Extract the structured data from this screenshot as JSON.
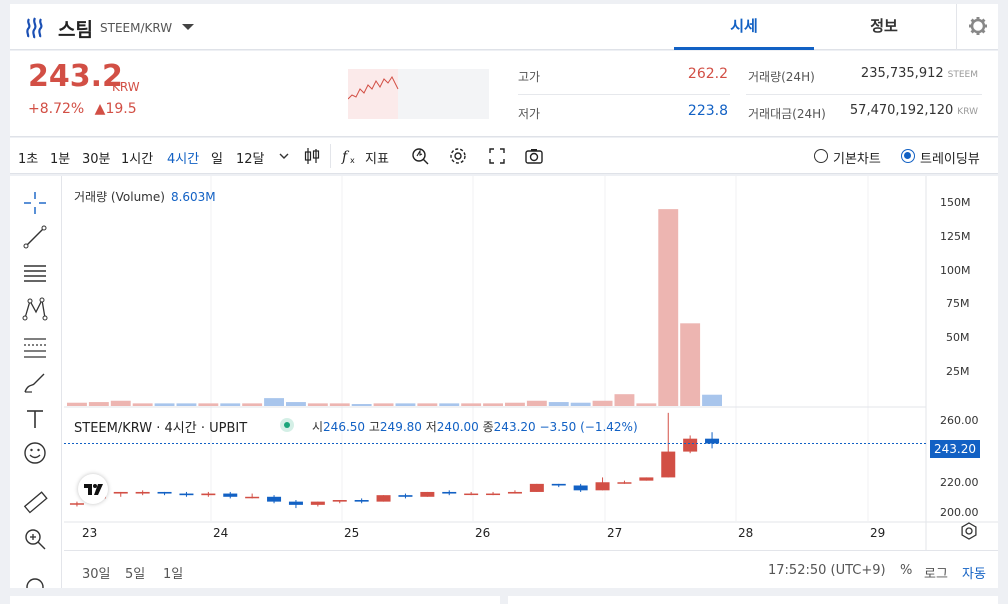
{
  "header": {
    "coin_name": "스팀",
    "pair": "STEEM/KRW",
    "tabs": [
      {
        "label": "시세"
      },
      {
        "label": "정보"
      }
    ]
  },
  "summary": {
    "price": "243.2",
    "unit": "KRW",
    "change_pct": "+8.72%",
    "change_abs": "▲19.5",
    "high_label": "고가",
    "high_value": "262.2",
    "low_label": "저가",
    "low_value": "223.8",
    "volume_label": "거래량(24H)",
    "volume_value": "235,735,912",
    "volume_unit": "STEEM",
    "amount_label": "거래대금(24H)",
    "amount_value": "57,470,192,120",
    "amount_unit": "KRW",
    "colors": {
      "up": "#d24f45",
      "down": "#1261c4"
    }
  },
  "toolbar": {
    "timeframes": [
      "1초",
      "1분",
      "30분",
      "1시간",
      "4시간",
      "일",
      "12달"
    ],
    "active_timeframe": "4시간",
    "indicator_label": "지표",
    "chart_modes": [
      "기본차트",
      "트레이딩뷰"
    ],
    "selected_mode": "트레이딩뷰"
  },
  "chart": {
    "volume_legend": "거래량 (Volume)",
    "volume_value": "8.603M",
    "symbol_legend": "STEEM/KRW · 4시간 · UPBIT",
    "ohlc": {
      "o_label": "시",
      "o": "246.50",
      "h_label": "고",
      "h": "249.80",
      "l_label": "저",
      "l": "240.00",
      "c_label": "종",
      "c": "243.20",
      "change": "−3.50 (−1.42%)"
    },
    "last_price_tag": "243.20",
    "volume_axis": [
      "150M",
      "125M",
      "100M",
      "75M",
      "50M",
      "25M"
    ],
    "price_axis": [
      "260.00",
      "220.00",
      "200.00"
    ],
    "x_axis": [
      "23",
      "24",
      "25",
      "26",
      "27",
      "28",
      "29"
    ],
    "ranges": [
      "30일",
      "5일",
      "1일"
    ],
    "clock": "17:52:50 (UTC+9)",
    "scale_options": [
      "%",
      "로그",
      "자동"
    ],
    "active_scale": "자동"
  },
  "chart_data": {
    "type": "candlestick",
    "price_range": [
      195,
      265
    ],
    "volume_range": [
      0,
      160
    ],
    "candles": [
      {
        "o": 206,
        "h": 207,
        "l": 204,
        "c": 206,
        "v": 2.5
      },
      {
        "o": 209,
        "h": 213,
        "l": 209,
        "c": 211,
        "v": 3
      },
      {
        "o": 212,
        "h": 213,
        "l": 210,
        "c": 213,
        "v": 4
      },
      {
        "o": 212,
        "h": 214,
        "l": 211,
        "c": 213,
        "v": 2
      },
      {
        "o": 213,
        "h": 213,
        "l": 211,
        "c": 212,
        "v": 2
      },
      {
        "o": 212,
        "h": 213,
        "l": 210,
        "c": 211,
        "v": 2
      },
      {
        "o": 211,
        "h": 213,
        "l": 210,
        "c": 212,
        "v": 2
      },
      {
        "o": 212,
        "h": 213,
        "l": 209,
        "c": 210,
        "v": 2
      },
      {
        "o": 210,
        "h": 212,
        "l": 209,
        "c": 210,
        "v": 2
      },
      {
        "o": 210,
        "h": 211,
        "l": 206,
        "c": 207,
        "v": 6
      },
      {
        "o": 207,
        "h": 208,
        "l": 203,
        "c": 205,
        "v": 3
      },
      {
        "o": 205,
        "h": 207,
        "l": 204,
        "c": 207,
        "v": 2
      },
      {
        "o": 207,
        "h": 208,
        "l": 206,
        "c": 208,
        "v": 2
      },
      {
        "o": 208,
        "h": 209,
        "l": 206,
        "c": 207,
        "v": 1.5
      },
      {
        "o": 207,
        "h": 211,
        "l": 207,
        "c": 211,
        "v": 2
      },
      {
        "o": 211,
        "h": 212,
        "l": 209,
        "c": 210,
        "v": 2
      },
      {
        "o": 210,
        "h": 213,
        "l": 210,
        "c": 213,
        "v": 2
      },
      {
        "o": 213,
        "h": 214,
        "l": 211,
        "c": 212,
        "v": 2
      },
      {
        "o": 212,
        "h": 213,
        "l": 211,
        "c": 212,
        "v": 2
      },
      {
        "o": 212,
        "h": 213,
        "l": 211,
        "c": 212,
        "v": 2
      },
      {
        "o": 212,
        "h": 214,
        "l": 212,
        "c": 213,
        "v": 2.5
      },
      {
        "o": 213,
        "h": 218,
        "l": 213,
        "c": 218,
        "v": 4
      },
      {
        "o": 218,
        "h": 218,
        "l": 216,
        "c": 217,
        "v": 3
      },
      {
        "o": 217,
        "h": 218,
        "l": 213,
        "c": 214,
        "v": 2.5
      },
      {
        "o": 214,
        "h": 222,
        "l": 214,
        "c": 219,
        "v": 4
      },
      {
        "o": 219,
        "h": 220,
        "l": 218,
        "c": 219,
        "v": 9
      },
      {
        "o": 220,
        "h": 222,
        "l": 220,
        "c": 222,
        "v": 2
      },
      {
        "o": 222,
        "h": 262,
        "l": 222,
        "c": 238,
        "v": 150
      },
      {
        "o": 238,
        "h": 248,
        "l": 237,
        "c": 246,
        "v": 63
      },
      {
        "o": 246,
        "h": 250,
        "l": 240,
        "c": 243,
        "v": 8.6
      }
    ]
  }
}
